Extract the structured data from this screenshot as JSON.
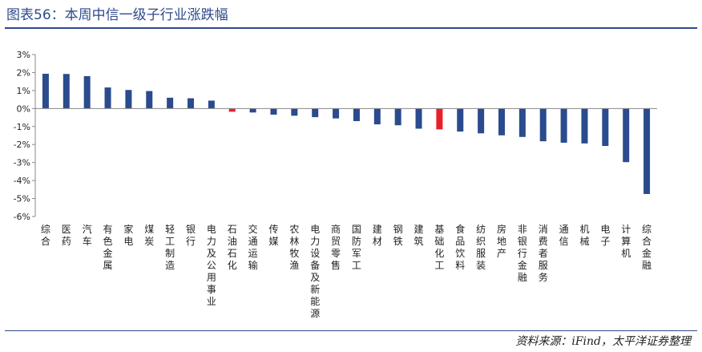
{
  "header": {
    "title": "图表56：本周中信一级子行业涨跌幅"
  },
  "footer": {
    "source": "资料来源：iFind，太平洋证券整理"
  },
  "colors": {
    "primary_bar": "#2a4b8d",
    "highlight_bar": "#e8202a",
    "title": "#2e4a8b"
  },
  "chart_data": {
    "type": "bar",
    "title": "",
    "xlabel": "",
    "ylabel": "",
    "ylim": [
      -6,
      3
    ],
    "yticks": [
      3,
      2,
      1,
      0,
      -1,
      -2,
      -3,
      -4,
      -5,
      -6
    ],
    "ytick_labels": [
      "3%",
      "2%",
      "1%",
      "0%",
      "-1%",
      "-2%",
      "-3%",
      "-4%",
      "-5%",
      "-6%"
    ],
    "grid": false,
    "legend": "none",
    "categories": [
      "综合",
      "医药",
      "汽车",
      "有色金属",
      "家电",
      "煤炭",
      "轻工制造",
      "银行",
      "电力及公用事业",
      "石油石化",
      "交通运输",
      "传媒",
      "农林牧渔",
      "电力设备及新能源",
      "商贸零售",
      "国防军工",
      "建材",
      "钢铁",
      "建筑",
      "基础化工",
      "食品饮料",
      "纺织服装",
      "房地产",
      "非银行金融",
      "消费者服务",
      "通信",
      "机械",
      "电子",
      "计算机",
      "综合金融"
    ],
    "values": [
      1.93,
      1.92,
      1.8,
      1.17,
      1.03,
      0.97,
      0.6,
      0.57,
      0.44,
      -0.18,
      -0.22,
      -0.34,
      -0.4,
      -0.48,
      -0.55,
      -0.7,
      -0.88,
      -0.93,
      -1.12,
      -1.16,
      -1.28,
      -1.38,
      -1.49,
      -1.58,
      -1.82,
      -1.9,
      -1.94,
      -2.08,
      -2.98,
      -4.75
    ],
    "highlight": [
      "石油石化",
      "基础化工"
    ]
  }
}
